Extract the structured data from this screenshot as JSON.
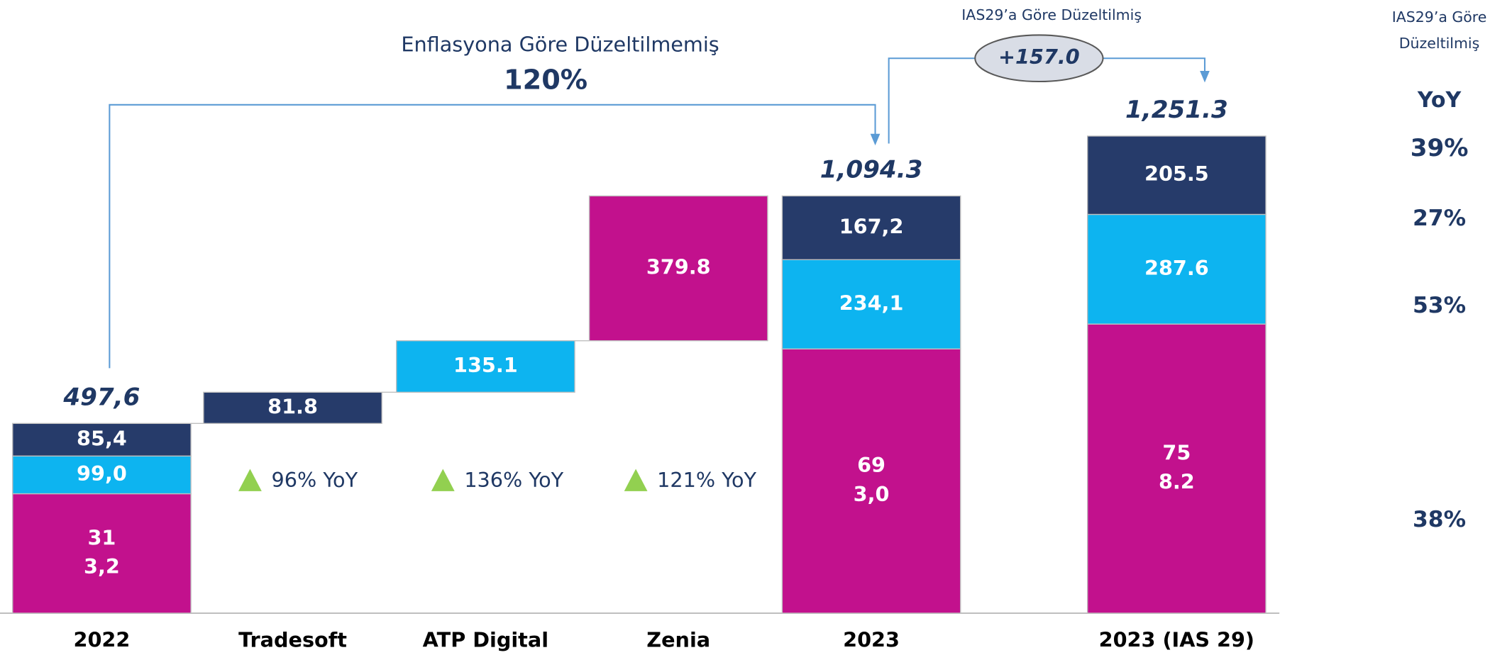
{
  "chart_data": {
    "type": "waterfall",
    "categories": [
      "2022",
      "Tradesoft",
      "ATP Digital",
      "Zenia",
      "2023",
      "2023 (IAS 29)"
    ],
    "series": [
      {
        "color": "#c2118d",
        "values": [
          313.2,
          null,
          null,
          379.8,
          693.0,
          758.2
        ],
        "value_labels": [
          [
            "31",
            "3,2"
          ],
          null,
          null,
          "379.8",
          [
            "69",
            "3,0"
          ],
          [
            "75",
            "8.2"
          ]
        ]
      },
      {
        "color": "#0db4f0",
        "values": [
          99.0,
          null,
          135.1,
          null,
          234.1,
          287.6
        ],
        "value_labels": [
          "99,0",
          null,
          "135.1",
          null,
          "234,1",
          "287.6"
        ]
      },
      {
        "color": "#263b6a",
        "values": [
          85.4,
          81.8,
          null,
          null,
          167.2,
          205.5
        ],
        "value_labels": [
          "85,4",
          "81.8",
          null,
          null,
          "167,2",
          "205.5"
        ]
      }
    ],
    "totals": [
      497.6,
      null,
      null,
      null,
      1094.3,
      1251.3
    ],
    "total_labels": [
      "497,6",
      null,
      null,
      null,
      "1,094.3",
      "1,251.3"
    ],
    "growth_labels": [
      null,
      "96% YoY",
      "136% YoY",
      "121% YoY",
      null,
      null
    ],
    "ylim": [
      0,
      1600
    ],
    "annotations": {
      "unadjusted": "Enflasyona Göre Düzeltilmemiş",
      "unadjusted_growth": "120%",
      "adjusted": "IAS29’a Göre Düzeltilmiş",
      "adjustment": "+157.0"
    },
    "side_panel": {
      "title": [
        "IAS29’a Göre",
        "Düzeltilmiş"
      ],
      "header": "YoY",
      "values": [
        "39%",
        "27%",
        "53%",
        "38%"
      ]
    }
  }
}
